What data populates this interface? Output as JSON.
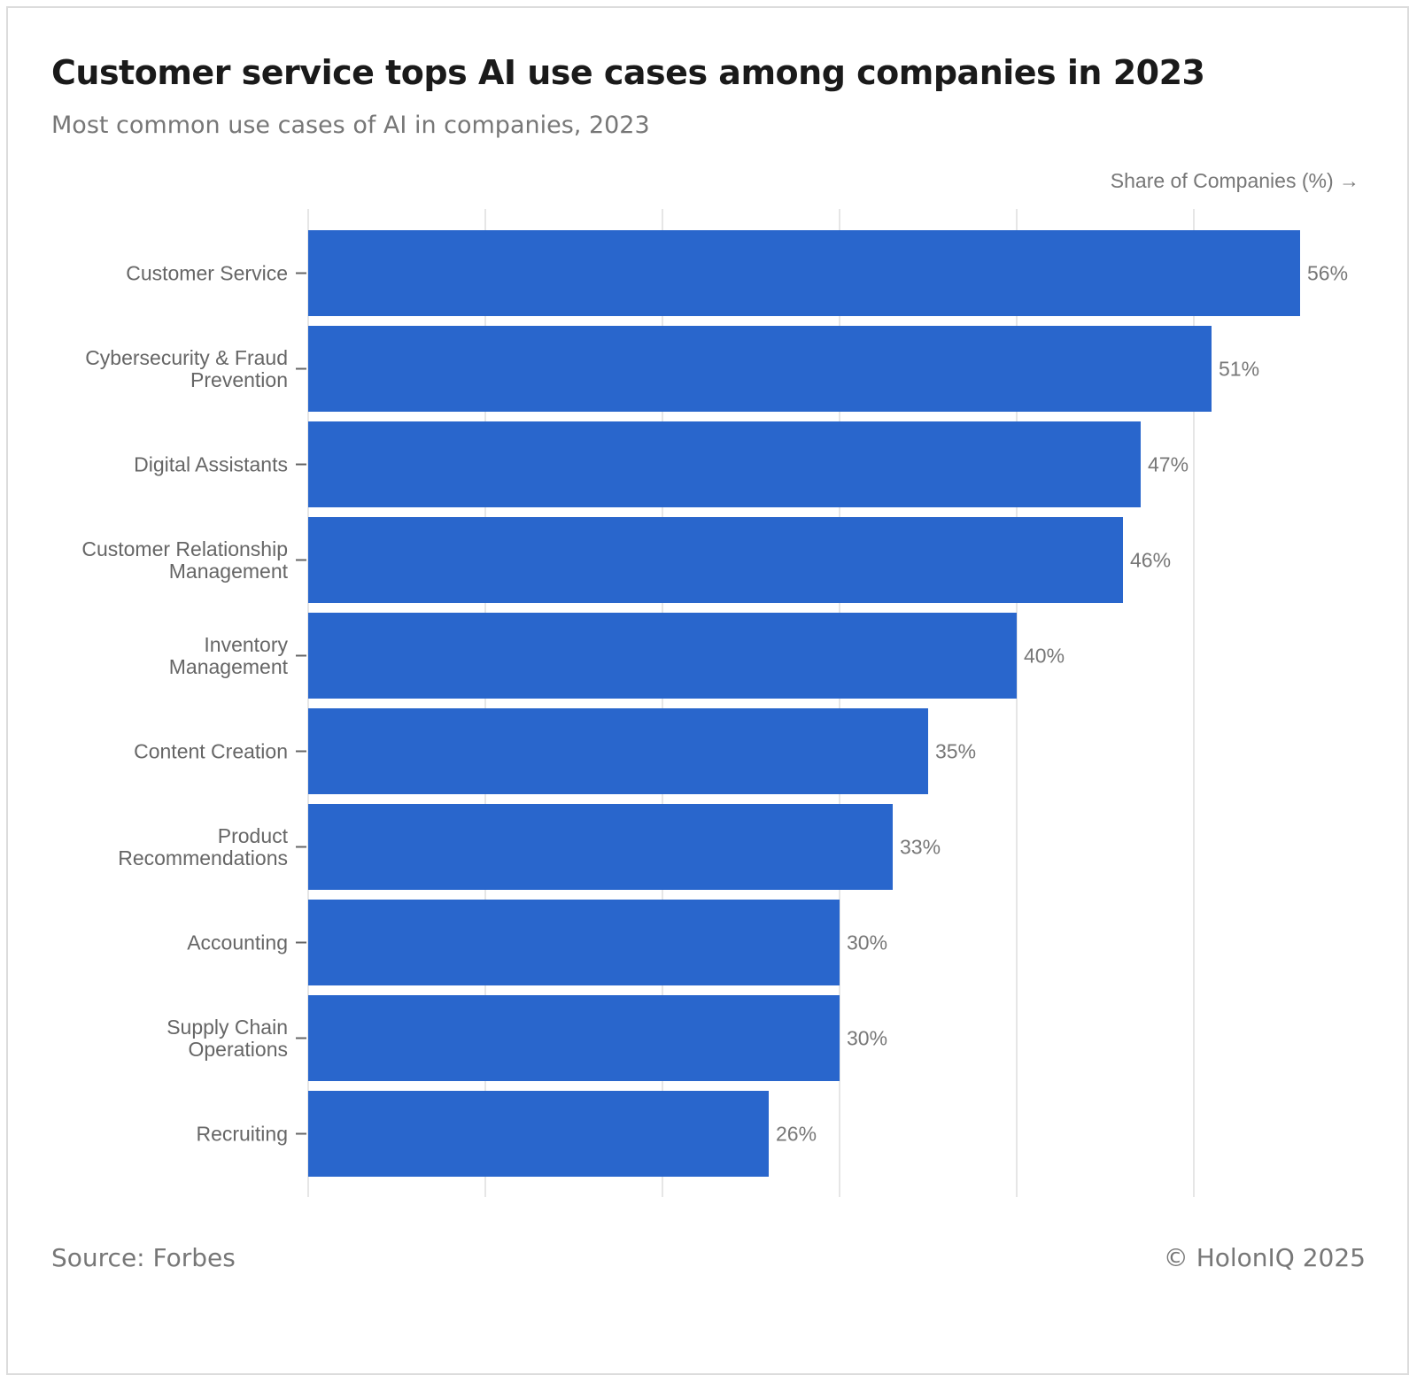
{
  "header": {
    "title": "Customer service tops AI use cases among companies in 2023",
    "subtitle": "Most common use cases of AI in companies, 2023"
  },
  "footer": {
    "source": "Source: Forbes",
    "copyright": "© HolonIQ 2025"
  },
  "colors": {
    "bar": "#2966cc",
    "grid": "#e6e6e6",
    "label_text": "#666666",
    "value_text": "#777777"
  },
  "chart_data": {
    "type": "bar",
    "orientation": "horizontal",
    "title": "Customer service tops AI use cases among companies in 2023",
    "subtitle": "Most common use cases of AI in companies, 2023",
    "xlabel": "Share of Companies (%) →",
    "ylabel": "",
    "categories": [
      [
        "Customer Service"
      ],
      [
        "Cybersecurity & Fraud",
        "Prevention"
      ],
      [
        "Digital Assistants"
      ],
      [
        "Customer Relationship",
        "Management"
      ],
      [
        "Inventory",
        "Management"
      ],
      [
        "Content Creation"
      ],
      [
        "Product",
        "Recommendations"
      ],
      [
        "Accounting"
      ],
      [
        "Supply Chain",
        "Operations"
      ],
      [
        "Recruiting"
      ]
    ],
    "values": [
      56,
      51,
      47,
      46,
      40,
      35,
      33,
      30,
      30,
      26
    ],
    "value_labels": [
      "56%",
      "51%",
      "47%",
      "46%",
      "40%",
      "35%",
      "33%",
      "30%",
      "30%",
      "26%"
    ],
    "xlim": [
      0,
      60
    ],
    "gridlines_x": [
      0,
      10,
      20,
      30,
      40,
      50
    ],
    "grid": true,
    "x_tick_labels_shown": false
  }
}
